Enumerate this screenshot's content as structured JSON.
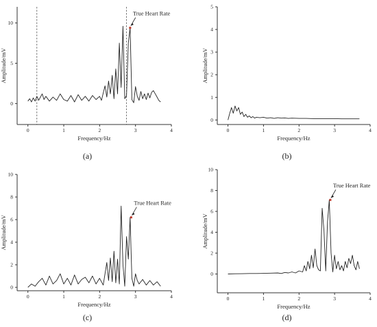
{
  "chart_data": [
    {
      "panel": "(a)",
      "type": "line",
      "xlabel": "Frequency/Hz",
      "ylabel": "Amplitude/mV",
      "xlim": [
        -0.3,
        4
      ],
      "ylim": [
        -2.6,
        12
      ],
      "xticks": [
        "0",
        "1",
        "2",
        "3",
        "4"
      ],
      "yticks": [
        "0",
        "5",
        "10"
      ],
      "vlines": [
        0.25,
        2.75
      ],
      "annotation": {
        "text": "True Heart Rate",
        "x": 2.85,
        "y": 9.4
      },
      "series": [
        {
          "x": [
            0.0,
            0.05,
            0.1,
            0.15,
            0.2,
            0.25,
            0.3,
            0.35,
            0.4,
            0.45,
            0.5,
            0.6,
            0.7,
            0.8,
            0.9,
            1.0,
            1.1,
            1.2,
            1.3,
            1.4,
            1.5,
            1.6,
            1.7,
            1.8,
            1.9,
            2.0,
            2.05,
            2.1,
            2.15,
            2.2,
            2.25,
            2.3,
            2.35,
            2.4,
            2.45,
            2.5,
            2.55,
            2.6,
            2.65,
            2.7,
            2.75,
            2.8,
            2.85,
            2.9,
            2.95,
            3.0,
            3.05,
            3.1,
            3.15,
            3.2,
            3.25,
            3.3,
            3.35,
            3.4,
            3.45,
            3.5,
            3.55,
            3.6,
            3.65,
            3.7
          ],
          "y": [
            0.3,
            0.6,
            0.2,
            0.7,
            0.3,
            0.9,
            0.4,
            0.8,
            1.2,
            0.5,
            0.9,
            0.3,
            0.8,
            0.4,
            1.2,
            0.5,
            0.3,
            1.0,
            0.2,
            1.1,
            0.4,
            0.9,
            0.3,
            1.0,
            0.5,
            0.9,
            0.4,
            1.3,
            2.2,
            0.8,
            2.8,
            1.2,
            3.5,
            0.6,
            4.3,
            1.2,
            7.5,
            2.0,
            9.6,
            0.6,
            1.0,
            7.5,
            9.4,
            0.5,
            0.1,
            2.1,
            0.9,
            0.4,
            1.5,
            0.6,
            1.2,
            0.5,
            1.3,
            0.7,
            1.4,
            1.6,
            1.2,
            0.8,
            0.4,
            0.2
          ]
        }
      ]
    },
    {
      "panel": "(b)",
      "type": "line",
      "xlabel": "Frequency/Hz",
      "ylabel": "Amplitude/mV",
      "xlim": [
        -0.3,
        4
      ],
      "ylim": [
        -0.2,
        5
      ],
      "xticks": [
        "0",
        "1",
        "2",
        "3",
        "4"
      ],
      "yticks": [
        "0",
        "1",
        "2",
        "3",
        "4",
        "5"
      ],
      "series": [
        {
          "x": [
            0.0,
            0.05,
            0.1,
            0.15,
            0.2,
            0.25,
            0.3,
            0.35,
            0.4,
            0.45,
            0.5,
            0.55,
            0.6,
            0.65,
            0.7,
            0.75,
            0.8,
            0.9,
            1.0,
            1.1,
            1.2,
            1.3,
            1.4,
            1.5,
            1.6,
            1.7,
            1.8,
            2.0,
            2.2,
            2.4,
            2.6,
            2.8,
            3.0,
            3.2,
            3.4,
            3.6,
            3.7
          ],
          "y": [
            0.0,
            0.3,
            0.55,
            0.3,
            0.62,
            0.4,
            0.55,
            0.25,
            0.35,
            0.15,
            0.25,
            0.12,
            0.18,
            0.1,
            0.15,
            0.08,
            0.12,
            0.1,
            0.12,
            0.08,
            0.1,
            0.07,
            0.1,
            0.08,
            0.09,
            0.07,
            0.08,
            0.07,
            0.07,
            0.06,
            0.06,
            0.06,
            0.06,
            0.05,
            0.05,
            0.05,
            0.05
          ]
        }
      ]
    },
    {
      "panel": "(c)",
      "type": "line",
      "xlabel": "Frequency/Hz",
      "ylabel": "Amplitude/mV",
      "xlim": [
        -0.3,
        4
      ],
      "ylim": [
        -0.3,
        10
      ],
      "xticks": [
        "0",
        "1",
        "2",
        "3",
        "4"
      ],
      "yticks": [
        "0",
        "2",
        "4",
        "6",
        "8",
        "10"
      ],
      "annotation": {
        "text": "True Heart Rate",
        "x": 2.88,
        "y": 6.2
      },
      "series": [
        {
          "x": [
            0.0,
            0.1,
            0.2,
            0.3,
            0.4,
            0.5,
            0.6,
            0.7,
            0.8,
            0.9,
            1.0,
            1.1,
            1.2,
            1.3,
            1.4,
            1.5,
            1.6,
            1.7,
            1.8,
            1.9,
            2.0,
            2.1,
            2.2,
            2.25,
            2.3,
            2.35,
            2.4,
            2.45,
            2.5,
            2.55,
            2.6,
            2.65,
            2.7,
            2.75,
            2.8,
            2.85,
            2.9,
            2.95,
            3.0,
            3.05,
            3.1,
            3.2,
            3.3,
            3.4,
            3.5,
            3.6,
            3.7
          ],
          "y": [
            0.0,
            0.3,
            0.1,
            0.5,
            0.8,
            0.2,
            1.0,
            0.3,
            0.6,
            1.2,
            0.3,
            0.8,
            0.2,
            1.1,
            0.3,
            0.7,
            0.9,
            0.4,
            1.0,
            0.3,
            0.8,
            0.2,
            2.2,
            0.6,
            2.6,
            0.5,
            3.2,
            0.4,
            2.5,
            0.3,
            7.2,
            2.0,
            0.1,
            4.5,
            2.5,
            6.2,
            0.8,
            0.1,
            1.2,
            0.6,
            0.3,
            0.7,
            0.2,
            0.6,
            0.2,
            0.5,
            0.1
          ]
        }
      ]
    },
    {
      "panel": "(d)",
      "type": "line",
      "xlabel": "Frequency/Hz",
      "ylabel": "Amplitude/mV",
      "xlim": [
        -0.3,
        4
      ],
      "ylim": [
        -1.8,
        10
      ],
      "xticks": [
        "0",
        "1",
        "2",
        "3",
        "4"
      ],
      "yticks": [
        "0",
        "2",
        "4",
        "6",
        "8",
        "10"
      ],
      "annotation": {
        "text": "True Heart Rate",
        "x": 2.88,
        "y": 7.1
      },
      "series": [
        {
          "x": [
            0.0,
            0.2,
            0.4,
            0.6,
            0.8,
            1.0,
            1.2,
            1.4,
            1.5,
            1.6,
            1.7,
            1.8,
            1.9,
            2.0,
            2.1,
            2.15,
            2.2,
            2.25,
            2.3,
            2.35,
            2.4,
            2.45,
            2.5,
            2.55,
            2.6,
            2.65,
            2.7,
            2.75,
            2.8,
            2.85,
            2.9,
            2.95,
            3.0,
            3.05,
            3.1,
            3.15,
            3.2,
            3.25,
            3.3,
            3.35,
            3.4,
            3.45,
            3.5,
            3.55,
            3.6,
            3.65,
            3.7
          ],
          "y": [
            0.0,
            0.02,
            0.03,
            0.05,
            0.05,
            0.06,
            0.08,
            0.1,
            0.05,
            0.15,
            0.1,
            0.2,
            0.1,
            0.3,
            0.2,
            0.8,
            0.3,
            1.2,
            0.5,
            1.8,
            0.6,
            2.4,
            0.8,
            0.4,
            0.3,
            6.3,
            4.2,
            0.3,
            5.0,
            7.1,
            2.0,
            0.2,
            1.8,
            0.5,
            1.2,
            0.4,
            0.8,
            0.3,
            1.2,
            0.6,
            1.5,
            1.0,
            1.8,
            0.8,
            0.4,
            1.2,
            0.5
          ]
        }
      ]
    }
  ]
}
